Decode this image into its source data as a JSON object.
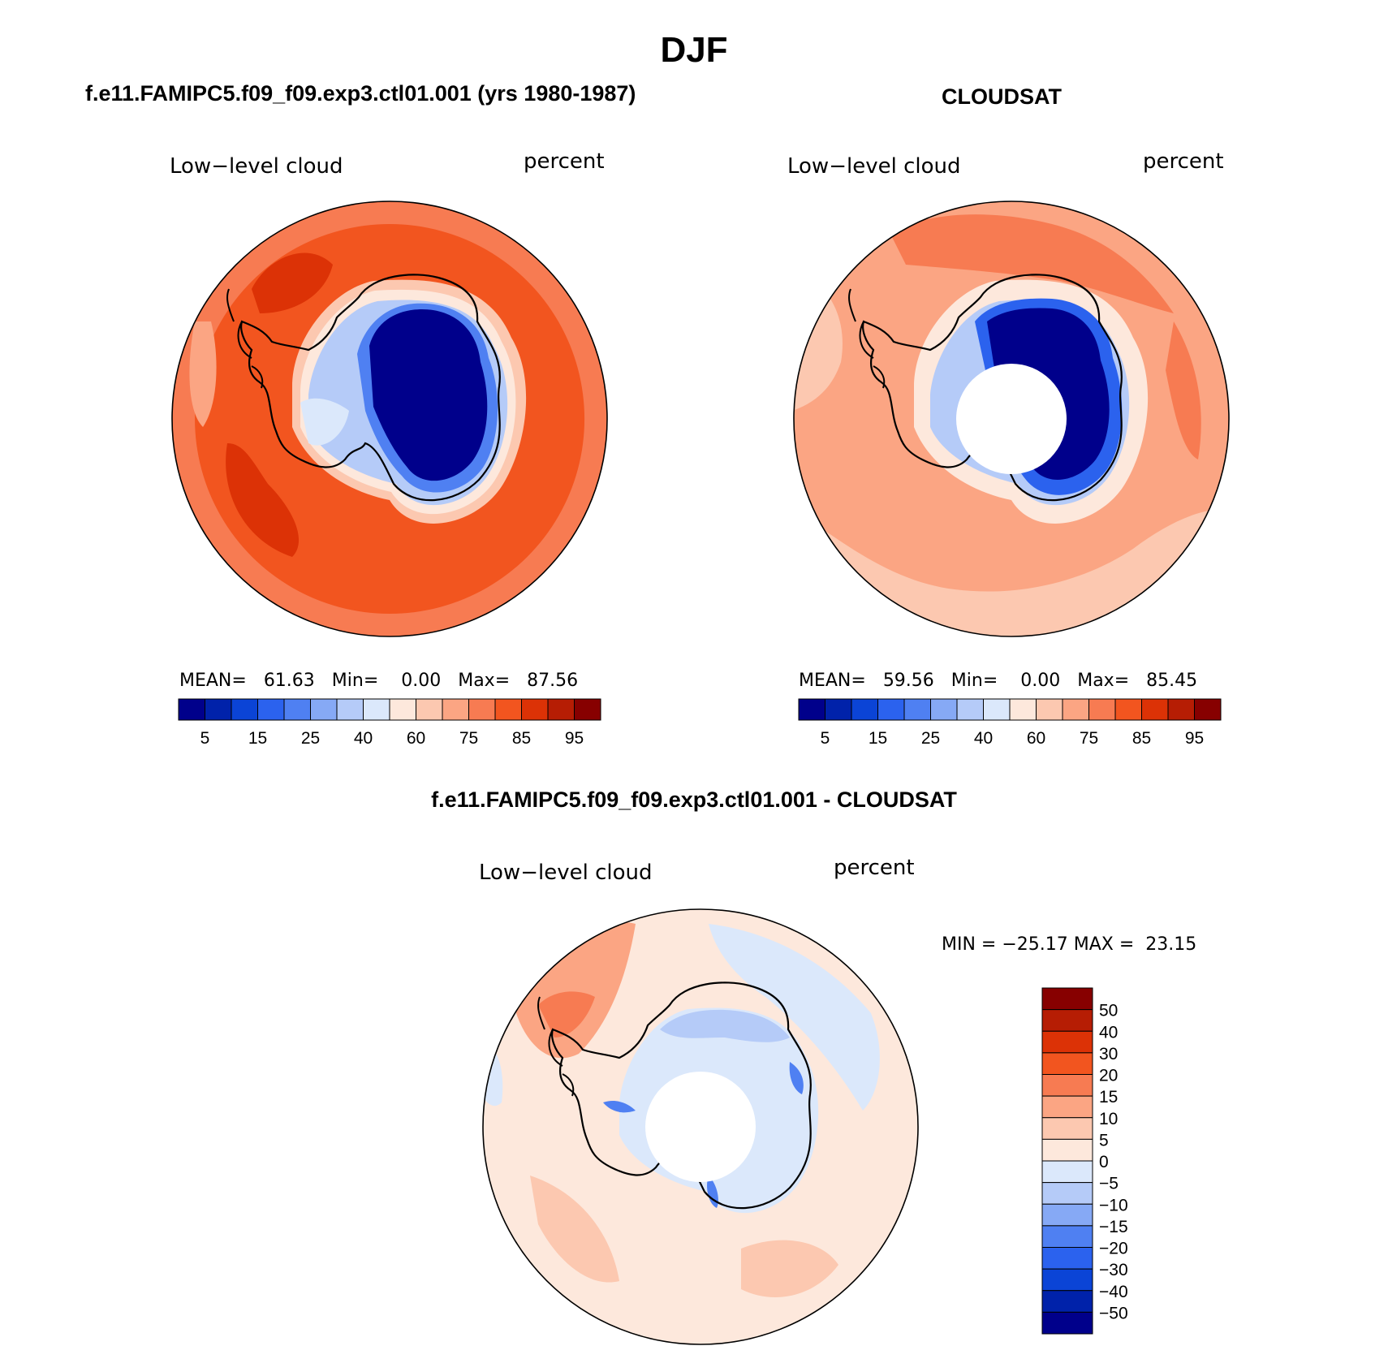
{
  "figure": {
    "title": "DJF"
  },
  "panels": [
    {
      "id": "model",
      "title": "f.e11.FAMIPC5.f09_f09.exp3.ctl01.001 (yrs 1980-1987)",
      "variable_label": "Low−level cloud",
      "units_label": "percent",
      "stats": {
        "mean_label": "MEAN=",
        "mean": "61.63",
        "min_label": "Min=",
        "min": "0.00",
        "max_label": "Max=",
        "max": "87.56"
      },
      "colorbar_ticks": [
        "5",
        "15",
        "25",
        "40",
        "60",
        "75",
        "85",
        "95"
      ],
      "has_pole_hole": false
    },
    {
      "id": "obs",
      "title": "CLOUDSAT",
      "variable_label": "Low−level cloud",
      "units_label": "percent",
      "stats": {
        "mean_label": "MEAN=",
        "mean": "59.56",
        "min_label": "Min=",
        "min": "0.00",
        "max_label": "Max=",
        "max": "85.45"
      },
      "colorbar_ticks": [
        "5",
        "15",
        "25",
        "40",
        "60",
        "75",
        "85",
        "95"
      ],
      "has_pole_hole": true
    },
    {
      "id": "diff",
      "title": "f.e11.FAMIPC5.f09_f09.exp3.ctl01.001 - CLOUDSAT",
      "variable_label": "Low−level cloud",
      "units_label": "percent",
      "minmax_text": "MIN = −25.17 MAX =  23.15",
      "colorbar_ticks": [
        "50",
        "40",
        "30",
        "20",
        "15",
        "10",
        "5",
        "0",
        "−5",
        "−10",
        "−15",
        "−20",
        "−30",
        "−40",
        "−50"
      ],
      "has_pole_hole": true
    }
  ],
  "colors": {
    "abs_scale": [
      "#00008b",
      "#0022aa",
      "#0b44d6",
      "#2b62ee",
      "#4f80f2",
      "#86a9f5",
      "#b5cbf8",
      "#dbe8fb",
      "#fde8dc",
      "#fcc8b0",
      "#fba583",
      "#f77b52",
      "#f2551f",
      "#dc3206",
      "#b61d04",
      "#870000"
    ],
    "diff_scale": [
      "#870000",
      "#b61d04",
      "#dc3206",
      "#f2551f",
      "#f77b52",
      "#fba583",
      "#fcc8b0",
      "#fde8dc",
      "#dbe8fb",
      "#b5cbf8",
      "#86a9f5",
      "#4f80f2",
      "#2b62ee",
      "#0b44d6",
      "#0022aa",
      "#00008b"
    ]
  }
}
